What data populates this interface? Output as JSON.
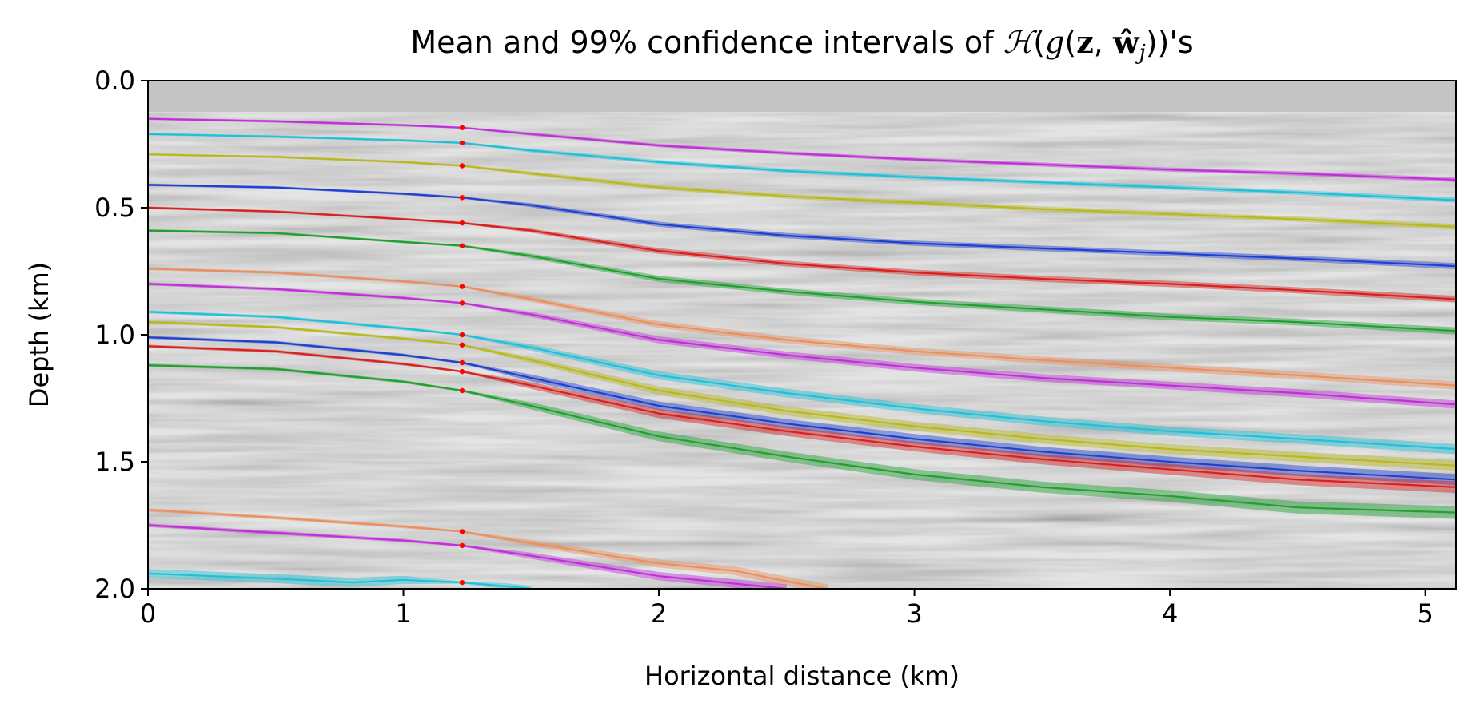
{
  "chart_data": {
    "type": "line",
    "title": {
      "prefix": "Mean and 99% confidence intervals of ",
      "math_H": "ℋ",
      "math_open": "(",
      "math_g": "g",
      "math_paren_open": "(",
      "math_z": "z",
      "math_comma": ", ",
      "math_w": "ŵ",
      "math_j": "j",
      "math_close": "))",
      "suffix": "'s"
    },
    "xlabel": "Horizontal distance (km)",
    "ylabel": "Depth (km)",
    "xlim": [
      0,
      5.12
    ],
    "ylim": [
      2.0,
      0.0
    ],
    "y_inverted": true,
    "x_ticks": [
      0,
      1,
      2,
      3,
      4,
      5
    ],
    "x_tick_labels": [
      "0",
      "1",
      "2",
      "3",
      "4",
      "5"
    ],
    "y_ticks": [
      0.0,
      0.5,
      1.0,
      1.5,
      2.0
    ],
    "y_tick_labels": [
      "0.0",
      "0.5",
      "1.0",
      "1.5",
      "2.0"
    ],
    "grid": false,
    "background": "grayscale seismic image",
    "well_location_x": 1.23,
    "control_point_color": "#ff0000",
    "series": [
      {
        "color": "#c030d8",
        "x": [
          0,
          0.5,
          1.0,
          1.23,
          1.5,
          2.0,
          2.5,
          3.0,
          3.5,
          4.0,
          4.5,
          5.12
        ],
        "y": [
          0.15,
          0.16,
          0.175,
          0.185,
          0.21,
          0.255,
          0.285,
          0.31,
          0.33,
          0.35,
          0.365,
          0.39
        ],
        "band": [
          0.005,
          0.005,
          0.005,
          0.004,
          0.006,
          0.007,
          0.007,
          0.007,
          0.008,
          0.008,
          0.008,
          0.009
        ]
      },
      {
        "color": "#20c0d8",
        "x": [
          0,
          0.5,
          1.0,
          1.23,
          1.5,
          2.0,
          2.5,
          3.0,
          3.5,
          4.0,
          4.5,
          5.12
        ],
        "y": [
          0.21,
          0.22,
          0.235,
          0.245,
          0.275,
          0.32,
          0.355,
          0.38,
          0.4,
          0.42,
          0.44,
          0.47
        ],
        "band": [
          0.005,
          0.005,
          0.005,
          0.004,
          0.007,
          0.008,
          0.008,
          0.008,
          0.008,
          0.009,
          0.009,
          0.01
        ]
      },
      {
        "color": "#b8b820",
        "x": [
          0,
          0.5,
          1.0,
          1.23,
          1.5,
          2.0,
          2.5,
          3.0,
          3.5,
          4.0,
          4.5,
          5.12
        ],
        "y": [
          0.29,
          0.3,
          0.32,
          0.335,
          0.365,
          0.42,
          0.455,
          0.48,
          0.505,
          0.525,
          0.545,
          0.575
        ],
        "band": [
          0.005,
          0.005,
          0.005,
          0.004,
          0.008,
          0.009,
          0.009,
          0.009,
          0.01,
          0.01,
          0.01,
          0.011
        ]
      },
      {
        "color": "#2040d0",
        "x": [
          0,
          0.5,
          1.0,
          1.23,
          1.5,
          2.0,
          2.5,
          3.0,
          3.5,
          4.0,
          4.5,
          5.12
        ],
        "y": [
          0.41,
          0.42,
          0.445,
          0.46,
          0.49,
          0.565,
          0.61,
          0.64,
          0.66,
          0.68,
          0.7,
          0.73
        ],
        "band": [
          0.005,
          0.005,
          0.005,
          0.004,
          0.008,
          0.01,
          0.01,
          0.01,
          0.011,
          0.011,
          0.011,
          0.012
        ]
      },
      {
        "color": "#d82020",
        "x": [
          0,
          0.5,
          1.0,
          1.23,
          1.5,
          2.0,
          2.5,
          3.0,
          3.5,
          4.0,
          4.5,
          5.12
        ],
        "y": [
          0.5,
          0.515,
          0.545,
          0.56,
          0.59,
          0.67,
          0.72,
          0.755,
          0.78,
          0.8,
          0.825,
          0.86
        ],
        "band": [
          0.005,
          0.005,
          0.005,
          0.004,
          0.008,
          0.011,
          0.011,
          0.011,
          0.012,
          0.012,
          0.012,
          0.013
        ]
      },
      {
        "color": "#20a030",
        "x": [
          0,
          0.5,
          1.0,
          1.23,
          1.5,
          2.0,
          2.5,
          3.0,
          3.5,
          4.0,
          4.5,
          5.12
        ],
        "y": [
          0.59,
          0.6,
          0.635,
          0.65,
          0.69,
          0.78,
          0.83,
          0.87,
          0.9,
          0.93,
          0.95,
          0.985
        ],
        "band": [
          0.005,
          0.005,
          0.005,
          0.004,
          0.009,
          0.012,
          0.012,
          0.012,
          0.013,
          0.013,
          0.013,
          0.014
        ]
      },
      {
        "color": "#e89060",
        "x": [
          0,
          0.5,
          1.0,
          1.23,
          1.5,
          2.0,
          2.5,
          3.0,
          3.5,
          4.0,
          4.5,
          5.12
        ],
        "y": [
          0.74,
          0.755,
          0.79,
          0.81,
          0.86,
          0.96,
          1.02,
          1.065,
          1.1,
          1.13,
          1.16,
          1.2
        ],
        "band": [
          0.006,
          0.006,
          0.006,
          0.004,
          0.01,
          0.013,
          0.014,
          0.014,
          0.014,
          0.015,
          0.015,
          0.016
        ]
      },
      {
        "color": "#c030d8",
        "x": [
          0,
          0.5,
          1.0,
          1.23,
          1.5,
          2.0,
          2.5,
          3.0,
          3.5,
          4.0,
          4.5,
          5.12
        ],
        "y": [
          0.8,
          0.82,
          0.855,
          0.875,
          0.92,
          1.02,
          1.08,
          1.13,
          1.17,
          1.2,
          1.23,
          1.275
        ],
        "band": [
          0.006,
          0.006,
          0.006,
          0.004,
          0.01,
          0.014,
          0.014,
          0.015,
          0.015,
          0.015,
          0.016,
          0.016
        ]
      },
      {
        "color": "#20c0d8",
        "x": [
          0,
          0.5,
          1.0,
          1.23,
          1.5,
          2.0,
          2.5,
          3.0,
          3.5,
          4.0,
          4.5,
          5.12
        ],
        "y": [
          0.91,
          0.93,
          0.975,
          1.0,
          1.05,
          1.16,
          1.23,
          1.29,
          1.34,
          1.38,
          1.41,
          1.45
        ],
        "band": [
          0.006,
          0.006,
          0.006,
          0.004,
          0.012,
          0.016,
          0.017,
          0.017,
          0.018,
          0.018,
          0.019,
          0.02
        ]
      },
      {
        "color": "#b8b820",
        "x": [
          0,
          0.5,
          1.0,
          1.23,
          1.5,
          2.0,
          2.5,
          3.0,
          3.5,
          4.0,
          4.5,
          5.12
        ],
        "y": [
          0.95,
          0.97,
          1.015,
          1.04,
          1.1,
          1.22,
          1.3,
          1.36,
          1.41,
          1.45,
          1.48,
          1.515
        ],
        "band": [
          0.006,
          0.006,
          0.006,
          0.004,
          0.012,
          0.017,
          0.018,
          0.018,
          0.019,
          0.019,
          0.02,
          0.021
        ]
      },
      {
        "color": "#2040d0",
        "x": [
          0,
          0.5,
          1.0,
          1.23,
          1.5,
          2.0,
          2.5,
          3.0,
          3.5,
          4.0,
          4.5,
          5.12
        ],
        "y": [
          1.01,
          1.03,
          1.08,
          1.11,
          1.17,
          1.28,
          1.35,
          1.41,
          1.46,
          1.5,
          1.535,
          1.57
        ],
        "band": [
          0.006,
          0.006,
          0.006,
          0.004,
          0.013,
          0.017,
          0.018,
          0.019,
          0.019,
          0.02,
          0.021,
          0.022
        ]
      },
      {
        "color": "#d82020",
        "x": [
          0,
          0.5,
          1.0,
          1.23,
          1.5,
          2.0,
          2.5,
          3.0,
          3.5,
          4.0,
          4.5,
          5.12
        ],
        "y": [
          1.045,
          1.065,
          1.115,
          1.145,
          1.2,
          1.31,
          1.38,
          1.44,
          1.49,
          1.53,
          1.57,
          1.6
        ],
        "band": [
          0.006,
          0.006,
          0.006,
          0.004,
          0.013,
          0.018,
          0.019,
          0.019,
          0.02,
          0.021,
          0.022,
          0.023
        ]
      },
      {
        "color": "#20a030",
        "x": [
          0,
          0.5,
          1.0,
          1.23,
          1.5,
          2.0,
          2.5,
          3.0,
          3.5,
          4.0,
          4.5,
          5.12
        ],
        "y": [
          1.12,
          1.135,
          1.185,
          1.22,
          1.28,
          1.4,
          1.48,
          1.55,
          1.6,
          1.635,
          1.68,
          1.7
        ],
        "band": [
          0.006,
          0.006,
          0.006,
          0.004,
          0.014,
          0.019,
          0.02,
          0.021,
          0.022,
          0.023,
          0.024,
          0.025
        ]
      },
      {
        "color": "#e89060",
        "x": [
          0,
          0.5,
          1.0,
          1.23,
          1.5,
          2.0,
          2.3,
          2.5,
          2.66
        ],
        "y": [
          1.69,
          1.72,
          1.755,
          1.775,
          1.82,
          1.9,
          1.93,
          1.97,
          2.0
        ],
        "band": [
          0.007,
          0.007,
          0.007,
          0.004,
          0.012,
          0.016,
          0.017,
          0.018,
          0.018
        ]
      },
      {
        "color": "#c030d8",
        "x": [
          0,
          0.5,
          1.0,
          1.23,
          1.5,
          2.0,
          2.3,
          2.5
        ],
        "y": [
          1.75,
          1.78,
          1.81,
          1.83,
          1.87,
          1.95,
          1.98,
          2.0
        ],
        "band": [
          0.007,
          0.007,
          0.007,
          0.004,
          0.012,
          0.016,
          0.017,
          0.018
        ]
      },
      {
        "color": "#20c0d8",
        "x": [
          0,
          0.5,
          0.8,
          1.0,
          1.23,
          1.4,
          1.5
        ],
        "y": [
          1.94,
          1.96,
          1.975,
          1.965,
          1.975,
          1.99,
          2.0
        ],
        "band": [
          0.018,
          0.018,
          0.018,
          0.016,
          0.005,
          0.012,
          0.012
        ]
      }
    ]
  }
}
